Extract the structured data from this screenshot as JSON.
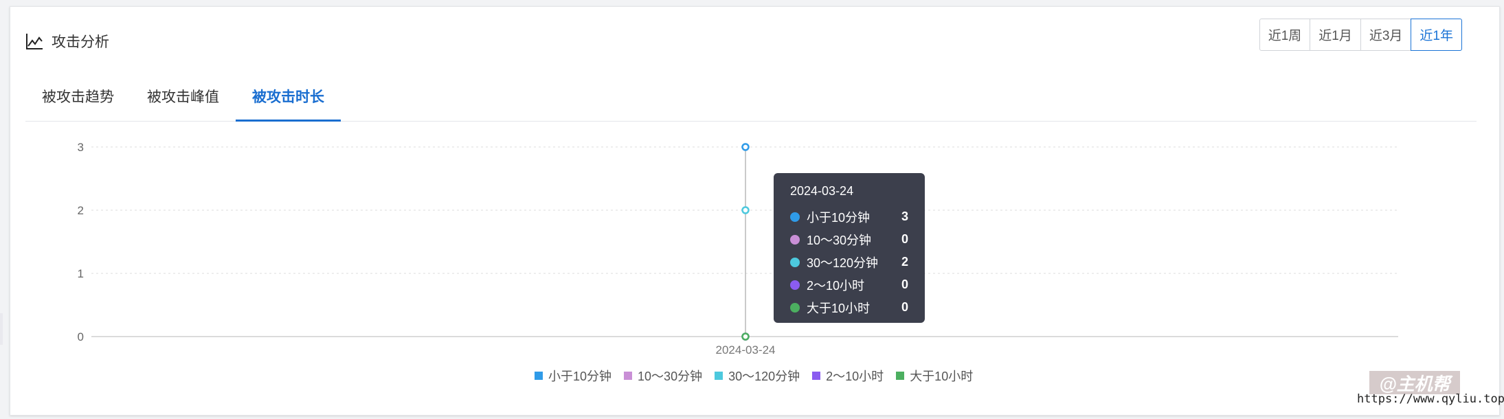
{
  "header": {
    "title": "攻击分析",
    "icon": "line-chart-icon"
  },
  "range_buttons": [
    {
      "label": "近1周"
    },
    {
      "label": "近1月"
    },
    {
      "label": "近3月"
    },
    {
      "label": "近1年",
      "active": true
    }
  ],
  "tabs": [
    {
      "label": "被攻击趋势"
    },
    {
      "label": "被攻击峰值"
    },
    {
      "label": "被攻击时长",
      "active": true
    }
  ],
  "chart_data": {
    "type": "line",
    "x": [
      "2024-03-24"
    ],
    "ylim": [
      0,
      3
    ],
    "yticks": [
      "0",
      "1",
      "2",
      "3"
    ],
    "grid": true,
    "legend_position": "bottom",
    "series": [
      {
        "name": "小于10分钟",
        "color": "#2f9be8",
        "values": [
          3
        ]
      },
      {
        "name": "10～30分钟",
        "color": "#c98fd6",
        "values": [
          0
        ]
      },
      {
        "name": "30～120分钟",
        "color": "#4dc9de",
        "values": [
          2
        ]
      },
      {
        "name": "2～10小时",
        "color": "#8b5cf0",
        "values": [
          0
        ]
      },
      {
        "name": "大于10小时",
        "color": "#4caf60",
        "values": [
          0
        ]
      }
    ]
  },
  "tooltip": {
    "date": "2024-03-24",
    "rows": [
      {
        "label": "小于10分钟",
        "value": "3",
        "color": "#2f9be8"
      },
      {
        "label": "10～30分钟",
        "value": "0",
        "color": "#c98fd6"
      },
      {
        "label": "30～120分钟",
        "value": "2",
        "color": "#4dc9de"
      },
      {
        "label": "2～10小时",
        "value": "0",
        "color": "#8b5cf0"
      },
      {
        "label": "大于10小时",
        "value": "0",
        "color": "#4caf60"
      }
    ]
  },
  "watermark": {
    "text": "@主机帮",
    "url": "https://www.qyliu.top"
  }
}
